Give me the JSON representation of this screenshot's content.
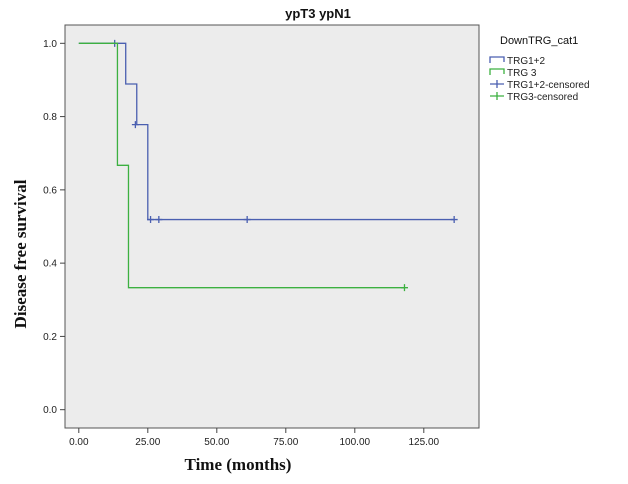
{
  "chart_data": {
    "type": "line",
    "title": "ypT3 ypN1",
    "xlabel": "Time (months)",
    "ylabel": "Disease free survival",
    "xlim": [
      -5,
      145
    ],
    "ylim": [
      -0.05,
      1.05
    ],
    "x_ticks": [
      0,
      25,
      50,
      75,
      100,
      125
    ],
    "x_tick_labels": [
      "0.00",
      "25.00",
      "50.00",
      "75.00",
      "100.00",
      "125.00"
    ],
    "y_ticks": [
      0,
      0.2,
      0.4,
      0.6,
      0.8,
      1.0
    ],
    "y_tick_labels": [
      "0.0",
      "0.2",
      "0.4",
      "0.6",
      "0.8",
      "1.0"
    ],
    "grid": false,
    "plot_background": "#ececec",
    "legend": {
      "title": "DownTRG_cat1",
      "placement": "right",
      "entries": [
        "TRG1+2",
        "TRG 3",
        "TRG1+2-censored",
        "TRG3-censored"
      ]
    },
    "series": [
      {
        "name": "TRG1+2",
        "color": "#4a5fb0",
        "steps": [
          [
            0,
            1.0
          ],
          [
            17,
            0.889
          ],
          [
            21,
            0.778
          ],
          [
            25,
            0.519
          ],
          [
            136,
            0.519
          ]
        ],
        "censored": [
          [
            13,
            1.0
          ],
          [
            20.5,
            0.778
          ],
          [
            26,
            0.519
          ],
          [
            29,
            0.519
          ],
          [
            61,
            0.519
          ],
          [
            136,
            0.519
          ]
        ]
      },
      {
        "name": "TRG 3",
        "color": "#3cb040",
        "steps": [
          [
            0,
            1.0
          ],
          [
            14,
            0.667
          ],
          [
            18,
            0.333
          ],
          [
            118,
            0.333
          ]
        ],
        "censored": [
          [
            118,
            0.333
          ]
        ]
      }
    ]
  }
}
